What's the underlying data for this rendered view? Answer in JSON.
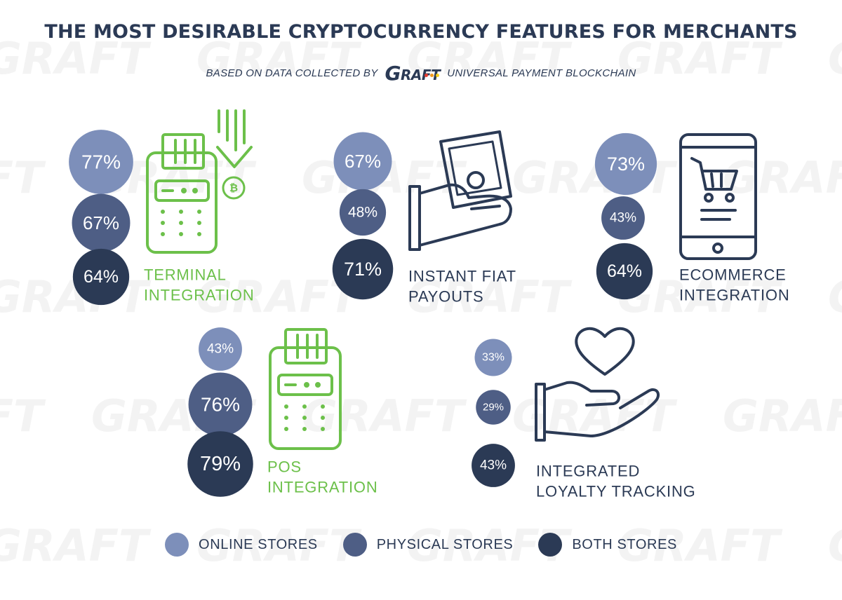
{
  "title": "THE MOST DESIRABLE CRYPTOCURRENCY FEATURES FOR MERCHANTS",
  "subtitle": {
    "prefix": "BASED ON DATA COLLECTED BY",
    "brand_big": "G",
    "brand_rest": "RAFT",
    "suffix": "UNIVERSAL PAYMENT BLOCKCHAIN"
  },
  "watermark_text": "GRAFT",
  "colors": {
    "online": "#7d8fba",
    "physical": "#4e5e85",
    "both": "#2b3a55",
    "highlight_green": "#6cc04a",
    "text": "#2b3a55",
    "watermark": "#f3f3f3",
    "logo_dot_1": "#e63b2e",
    "logo_dot_2": "#f29a1f",
    "logo_dot_3": "#f5cd1b"
  },
  "chart_data": {
    "type": "bubble",
    "unit": "%",
    "series": [
      {
        "name": "ONLINE STORES",
        "key": "online"
      },
      {
        "name": "PHYSICAL STORES",
        "key": "physical"
      },
      {
        "name": "BOTH STORES",
        "key": "both"
      }
    ],
    "features": [
      {
        "label": [
          "TERMINAL",
          "INTEGRATION"
        ],
        "icon": "payment-terminal-bitcoin-icon",
        "label_color": "highlight_green",
        "values": {
          "online": 77,
          "physical": 67,
          "both": 64
        },
        "display": {
          "online": "77%",
          "physical": "67%",
          "both": "64%"
        }
      },
      {
        "label": [
          "INSTANT FIAT",
          "PAYOUTS"
        ],
        "icon": "hand-with-cash-icon",
        "label_color": "text",
        "values": {
          "online": 67,
          "physical": 48,
          "both": 71
        },
        "display": {
          "online": "67%",
          "physical": "48%",
          "both": "71%"
        }
      },
      {
        "label": [
          "ECOMMERCE",
          "INTEGRATION"
        ],
        "icon": "mobile-shopping-cart-icon",
        "label_color": "text",
        "values": {
          "online": 73,
          "physical": 43,
          "both": 64
        },
        "display": {
          "online": "73%",
          "physical": "43%",
          "both": "64%"
        }
      },
      {
        "label": [
          "POS",
          "INTEGRATION"
        ],
        "icon": "pos-terminal-icon",
        "label_color": "highlight_green",
        "values": {
          "online": 43,
          "physical": 76,
          "both": 79
        },
        "display": {
          "online": "43%",
          "physical": "76%",
          "both": "79%"
        }
      },
      {
        "label": [
          "INTEGRATED",
          "LOYALTY TRACKING"
        ],
        "icon": "hand-with-heart-icon",
        "label_color": "text",
        "values": {
          "online": 33,
          "physical": 29,
          "both": 43
        },
        "display": {
          "online": "33%",
          "physical": "29%",
          "both": "43%"
        }
      }
    ],
    "legend": {
      "placement": "bottom-center"
    }
  }
}
